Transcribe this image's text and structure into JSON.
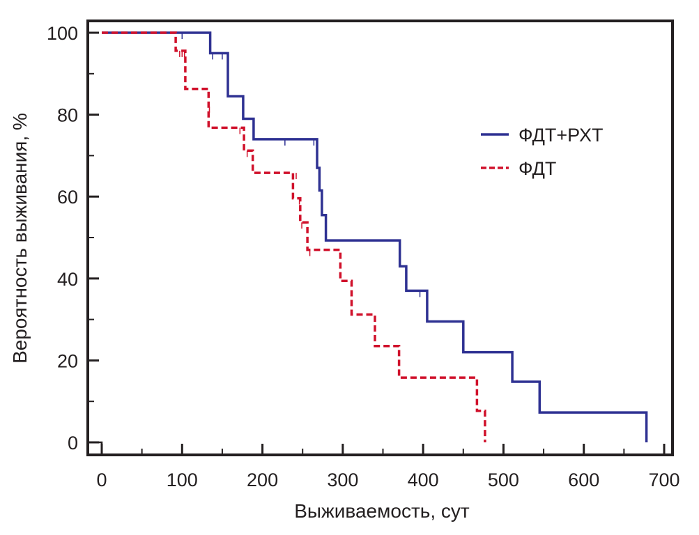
{
  "chart_data": {
    "type": "line",
    "subtype": "kaplan-meier-step",
    "title": "",
    "xlabel": "Выживаемость, сут",
    "ylabel": "Вероятность выживания, %",
    "xlim": [
      -15,
      720
    ],
    "ylim": [
      -3,
      103
    ],
    "xticks": [
      0,
      100,
      200,
      300,
      400,
      500,
      600,
      700
    ],
    "xtick_labels": [
      "0",
      "100",
      "200",
      "300",
      "400",
      "500",
      "600",
      "700"
    ],
    "xminor": [
      50,
      150,
      250,
      350,
      450,
      550,
      650
    ],
    "yticks": [
      0,
      20,
      40,
      60,
      80,
      100
    ],
    "ytick_labels": [
      "0",
      "20",
      "40",
      "60",
      "80",
      "100"
    ],
    "yminor": [
      10,
      30,
      50,
      70,
      90
    ],
    "grid": false,
    "legend_position": "upper-right",
    "series": [
      {
        "name": "ФДТ+РХТ",
        "color": "#2e3192",
        "style": "solid",
        "steps": [
          [
            0,
            100
          ],
          [
            135,
            100
          ],
          [
            135,
            95
          ],
          [
            157,
            95
          ],
          [
            157,
            84.5
          ],
          [
            176,
            84.5
          ],
          [
            176,
            79
          ],
          [
            189,
            79
          ],
          [
            189,
            74
          ],
          [
            268,
            74
          ],
          [
            268,
            67
          ],
          [
            271,
            67
          ],
          [
            271,
            61.5
          ],
          [
            274,
            61.5
          ],
          [
            274,
            55.5
          ],
          [
            279,
            55.5
          ],
          [
            279,
            49.3
          ],
          [
            371,
            49.3
          ],
          [
            371,
            43
          ],
          [
            379,
            43
          ],
          [
            379,
            37
          ],
          [
            405,
            37
          ],
          [
            405,
            29.5
          ],
          [
            450,
            29.5
          ],
          [
            450,
            22
          ],
          [
            511,
            22
          ],
          [
            511,
            14.8
          ],
          [
            545,
            14.8
          ],
          [
            545,
            7.3
          ],
          [
            678,
            7.3
          ],
          [
            678,
            0
          ]
        ],
        "censored": [
          [
            100,
            100
          ],
          [
            135,
            100
          ],
          [
            138,
            95
          ],
          [
            150,
            95
          ],
          [
            228,
            74
          ],
          [
            264,
            74
          ],
          [
            396,
            37
          ]
        ]
      },
      {
        "name": "ФДТ",
        "color": "#d0112b",
        "style": "dashed",
        "steps": [
          [
            0,
            100
          ],
          [
            92,
            100
          ],
          [
            92,
            95.6
          ],
          [
            104,
            95.6
          ],
          [
            104,
            86.3
          ],
          [
            133,
            86.3
          ],
          [
            133,
            76.8
          ],
          [
            177,
            76.8
          ],
          [
            177,
            71.2
          ],
          [
            188,
            71.2
          ],
          [
            188,
            65.8
          ],
          [
            238,
            65.8
          ],
          [
            238,
            59.6
          ],
          [
            247,
            59.6
          ],
          [
            247,
            53.7
          ],
          [
            256,
            53.7
          ],
          [
            256,
            47
          ],
          [
            297,
            47
          ],
          [
            297,
            39.4
          ],
          [
            311,
            39.4
          ],
          [
            311,
            31.2
          ],
          [
            340,
            31.2
          ],
          [
            340,
            23.5
          ],
          [
            370,
            23.5
          ],
          [
            370,
            15.8
          ],
          [
            467,
            15.8
          ],
          [
            467,
            7.7
          ],
          [
            477,
            7.7
          ],
          [
            477,
            0
          ]
        ],
        "censored": [
          [
            97,
            95.6
          ],
          [
            100,
            95.6
          ],
          [
            103,
            95.6
          ],
          [
            134,
            82
          ],
          [
            172,
            76.8
          ],
          [
            181,
            71.2
          ],
          [
            242,
            65.8
          ],
          [
            246,
            59.6
          ],
          [
            249,
            53.7
          ],
          [
            259,
            47
          ]
        ]
      }
    ]
  }
}
